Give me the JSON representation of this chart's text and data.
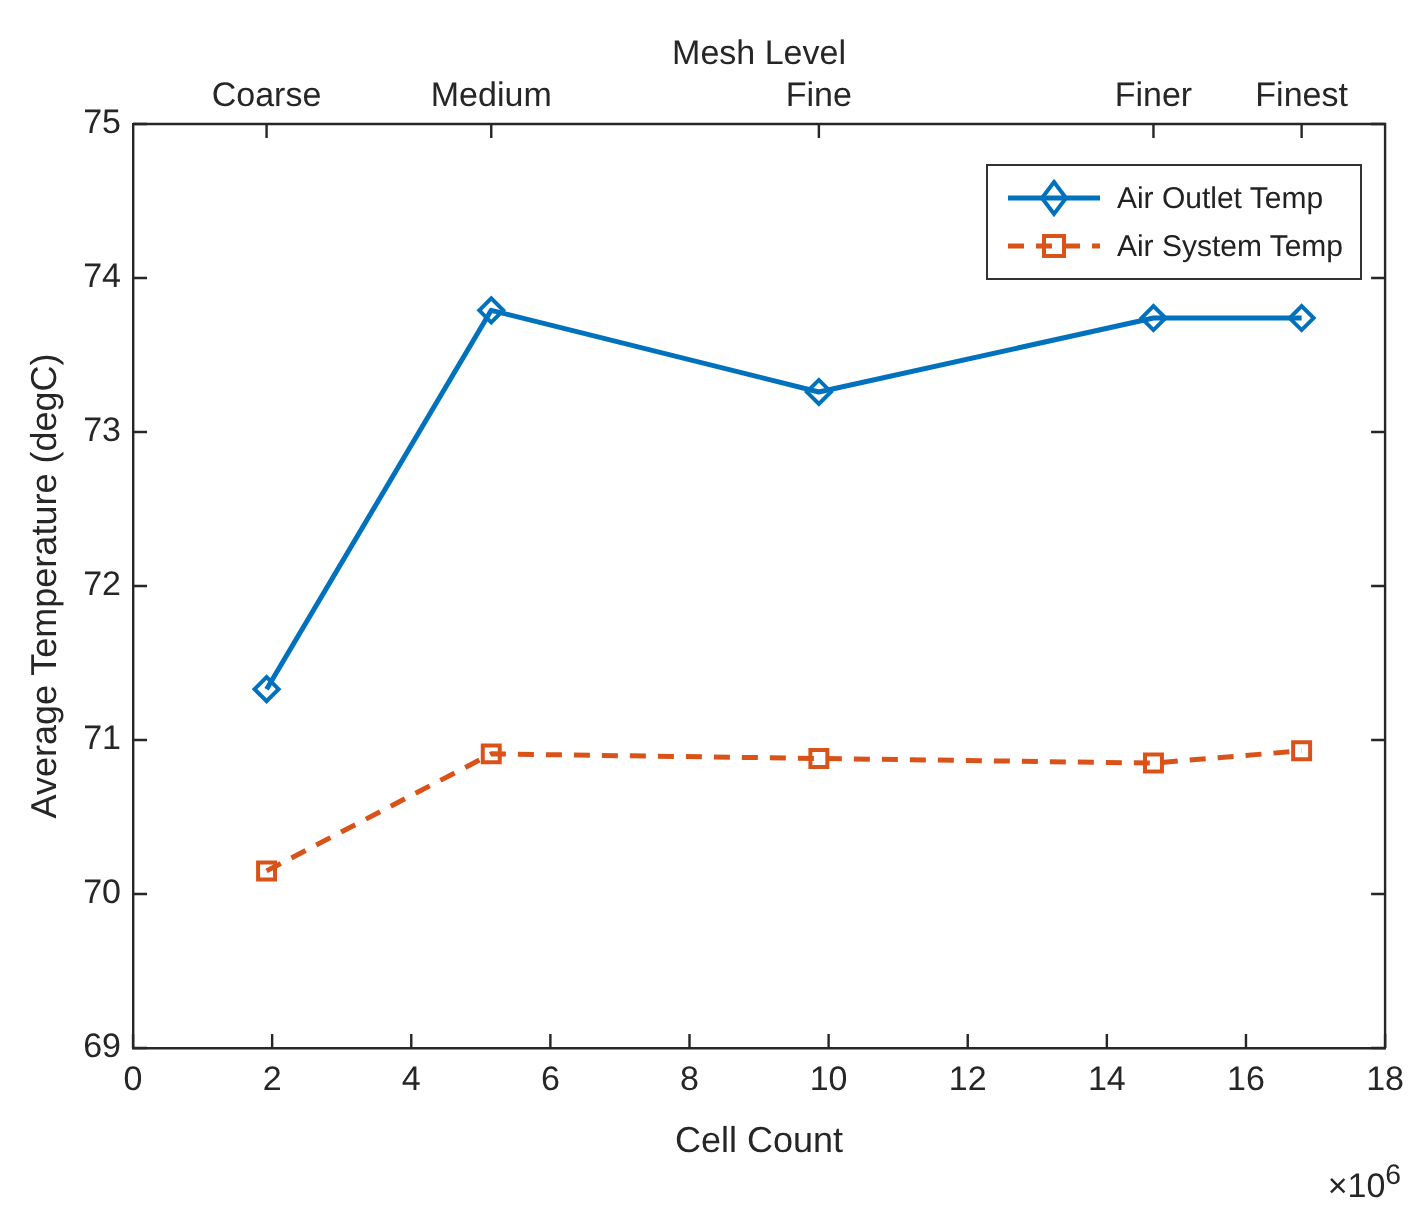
{
  "chart_data": {
    "type": "line",
    "xlabel": "Cell Count",
    "ylabel": "Average Temperature (degC)",
    "x": [
      1.92,
      5.15,
      9.86,
      14.67,
      16.8
    ],
    "series": [
      {
        "name": "Air Outlet Temp",
        "color": "#0072bd",
        "values": [
          71.33,
          73.79,
          73.26,
          73.74,
          73.74
        ],
        "marker": "diamond",
        "line_style": "solid"
      },
      {
        "name": "Air System Temp",
        "color": "#d95319",
        "values": [
          70.15,
          70.91,
          70.88,
          70.85,
          70.93
        ],
        "marker": "square",
        "line_style": "dashed"
      }
    ],
    "xlim": [
      0,
      18
    ],
    "xticks": [
      0,
      2,
      4,
      6,
      8,
      10,
      12,
      14,
      16,
      18
    ],
    "ylim": [
      69,
      75
    ],
    "yticks": [
      69,
      70,
      71,
      72,
      73,
      74,
      75
    ],
    "legend": "top right",
    "grid": false,
    "annotations": [
      "Mesh Level",
      {
        "text": "Coarse",
        "x": 1.92
      },
      {
        "text": "Medium",
        "x": 5.15
      },
      {
        "text": "Fine",
        "x": 9.86
      },
      {
        "text": "Finer",
        "x": 14.67
      },
      {
        "text": "Finest",
        "x": 16.8
      },
      "×10$^{6}$"
    ]
  }
}
